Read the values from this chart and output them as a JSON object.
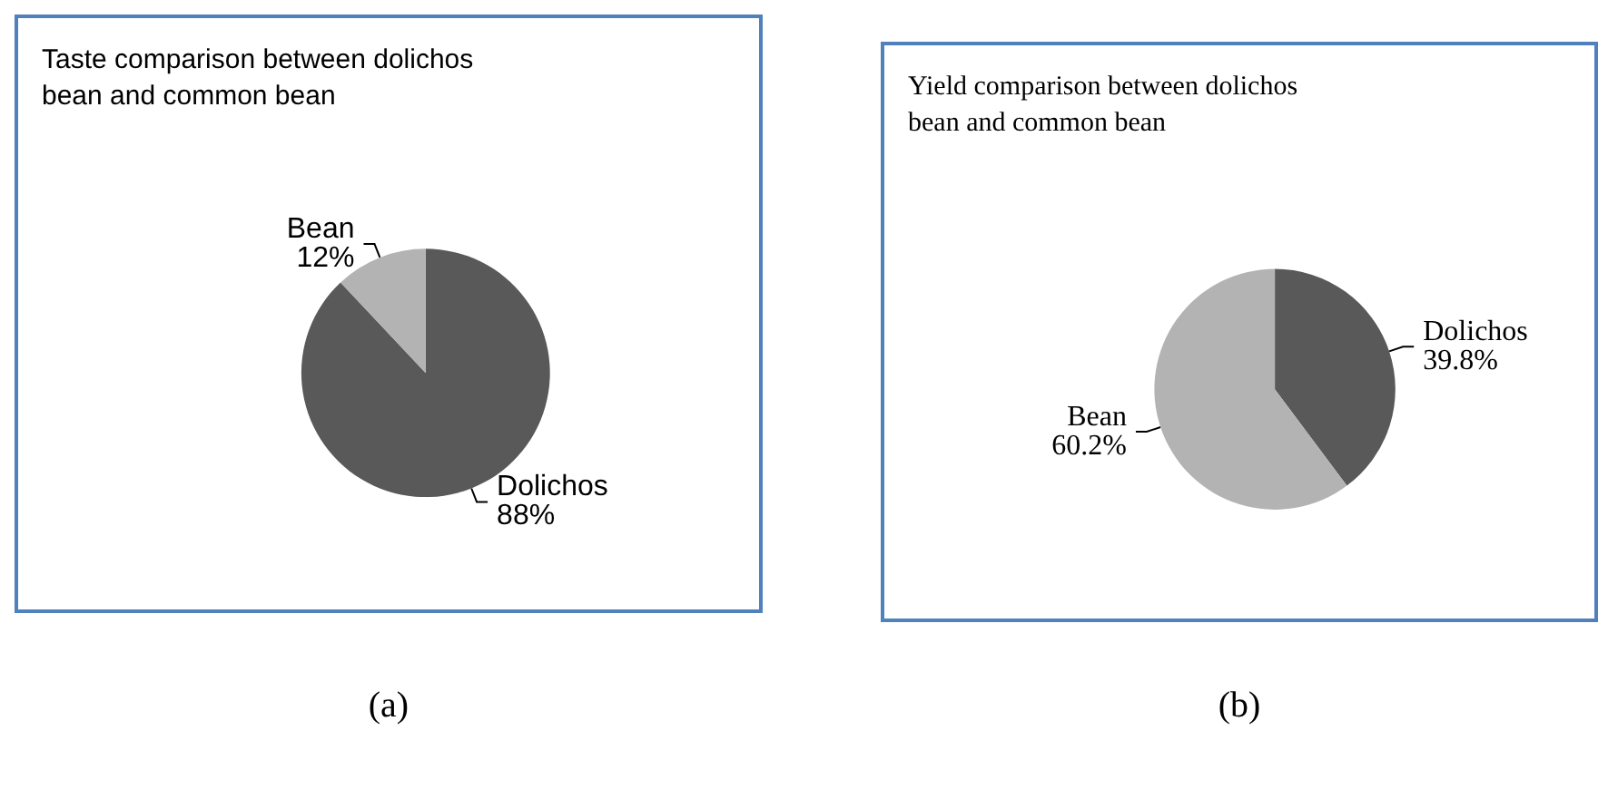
{
  "chart_data": [
    {
      "type": "pie",
      "title": "Taste comparison between dolichos\nbean and common bean",
      "categories": [
        "Dolichos",
        "Bean"
      ],
      "values": [
        88,
        12
      ],
      "value_labels": [
        "88%",
        "12%"
      ],
      "colors": [
        "#595959",
        "#b3b3b3"
      ],
      "annotations": [
        "(a)"
      ]
    },
    {
      "type": "pie",
      "title": "Yield comparison between dolichos\nbean and common bean",
      "categories": [
        "Dolichos",
        "Bean"
      ],
      "values": [
        39.8,
        60.2
      ],
      "value_labels": [
        "39.8%",
        "60.2%"
      ],
      "colors": [
        "#595959",
        "#b3b3b3"
      ],
      "annotations": [
        "(b)"
      ]
    }
  ]
}
